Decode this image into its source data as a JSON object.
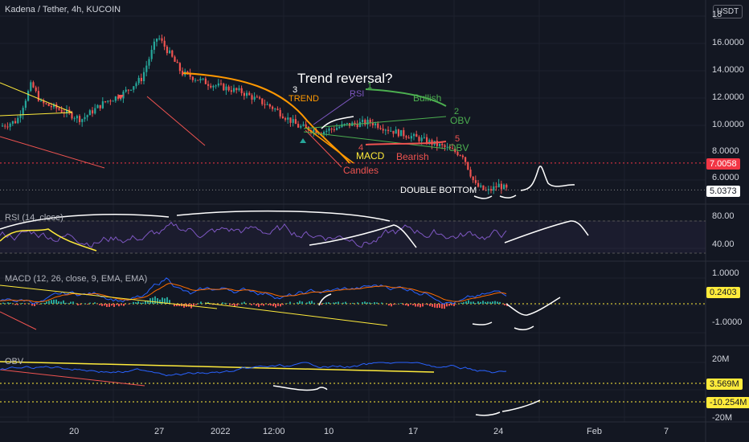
{
  "header": {
    "symbol_title": "Kadena / Tether, 4h, KUCOIN",
    "currency": "USDT"
  },
  "colors": {
    "background": "#131722",
    "grid": "#1e222d",
    "up": "#26a69a",
    "down": "#ef5350",
    "price_tag_red": "#f23645",
    "price_tag_last": "#ffffff",
    "rsi_line": "#7e57c2",
    "macd_line": "#2962ff",
    "signal_line": "#ff6d00",
    "obv_line": "#2962ff",
    "annotation_white": "#ffffff",
    "annotation_green": "#4caf50",
    "annotation_orange": "#ff9800",
    "annotation_red": "#ef5350",
    "annotation_yellow": "#ffeb3b",
    "annotation_purple": "#7e57c2"
  },
  "panes": {
    "price": {
      "axis_ticks": [
        "16.0000",
        "14.0000",
        "12.0000",
        "10.0000",
        "8.0000",
        "6.0000"
      ],
      "axis_top_partial": "18",
      "level_tag": "7.0058",
      "last_tag": "5.0373"
    },
    "rsi": {
      "title": "RSI (14, close)",
      "axis_ticks": [
        "80.00",
        "40.00"
      ]
    },
    "macd": {
      "title": "MACD (12, 26, close, 9, EMA, EMA)",
      "axis_ticks": [
        "1.0000",
        "-1.0000"
      ],
      "value_tag": "0.2403"
    },
    "obv": {
      "title": "OBV",
      "axis_ticks": [
        "20M",
        "-20M"
      ],
      "value_tag_1": "3.569M",
      "value_tag_2": "-10.254M"
    }
  },
  "time_axis": [
    "20",
    "27",
    "2022",
    "12:00",
    "10",
    "17",
    "24",
    "Feb",
    "7"
  ],
  "annotations": {
    "trend_reversal": "Trend reversal?",
    "trend": "TREND",
    "three": "3",
    "rsi": "RSI",
    "one": "1",
    "bullish": "Bullish",
    "two": "2",
    "obv_upper": "OBV",
    "macd": "MACD",
    "four": "4",
    "five": "5",
    "obv_lower": "OBV",
    "bearish": "Bearish",
    "candles": "Candles",
    "double_bottom": "DOUBLE BOTTOM"
  },
  "chart_data": {
    "type": "candlestick",
    "title": "Kadena / Tether, 4h, KUCOIN",
    "price_range": [
      4,
      18
    ],
    "key_prices": {
      "swing_high": 16.5,
      "marked_level": 7.0058,
      "last": 5.0373
    },
    "rsi_range": [
      20,
      90
    ],
    "macd_range": [
      -1.5,
      1.5
    ],
    "obv_range": [
      -25000000,
      25000000
    ]
  }
}
